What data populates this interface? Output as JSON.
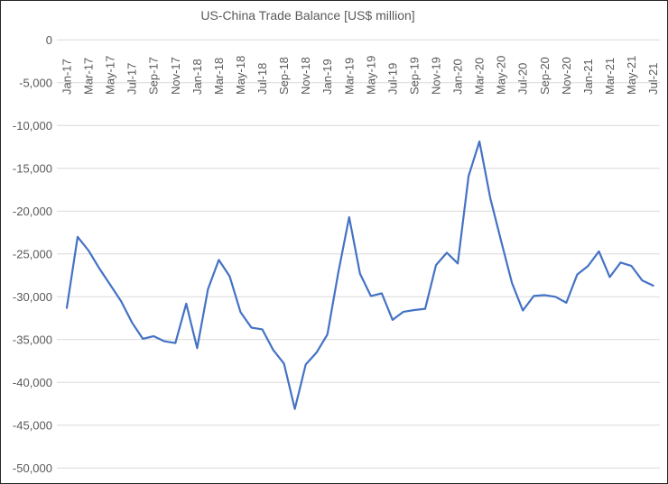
{
  "chart": {
    "title": "US-China Trade Balance [US$ million]"
  },
  "chart_data": {
    "type": "line",
    "title": "US-China Trade Balance [US$ million]",
    "xlabel": "",
    "ylabel": "",
    "legend": "none",
    "grid": true,
    "ylim": [
      -50000,
      0
    ],
    "y_tick_interval": 5000,
    "line_color": "#4472C4",
    "gridline_color": "#D9D9D9",
    "label_color": "#595959",
    "x": [
      "Jan-17",
      "Feb-17",
      "Mar-17",
      "Apr-17",
      "May-17",
      "Jun-17",
      "Jul-17",
      "Aug-17",
      "Sep-17",
      "Oct-17",
      "Nov-17",
      "Dec-17",
      "Jan-18",
      "Feb-18",
      "Mar-18",
      "Apr-18",
      "May-18",
      "Jun-18",
      "Jul-18",
      "Aug-18",
      "Sep-18",
      "Oct-18",
      "Nov-18",
      "Dec-18",
      "Jan-19",
      "Feb-19",
      "Mar-19",
      "Apr-19",
      "May-19",
      "Jun-19",
      "Jul-19",
      "Aug-19",
      "Sep-19",
      "Oct-19",
      "Nov-19",
      "Dec-19",
      "Jan-20",
      "Feb-20",
      "Mar-20",
      "Apr-20",
      "May-20",
      "Jun-20",
      "Jul-20",
      "Aug-20",
      "Sep-20",
      "Oct-20",
      "Nov-20",
      "Dec-20",
      "Jan-21",
      "Feb-21",
      "Mar-21",
      "Apr-21",
      "May-21",
      "Jun-21",
      "Jul-21"
    ],
    "values": [
      -31300,
      -23000,
      -24600,
      -26700,
      -28600,
      -30500,
      -33000,
      -34900,
      -34600,
      -35200,
      -35400,
      -30800,
      -36000,
      -29100,
      -25700,
      -27600,
      -31800,
      -33600,
      -33800,
      -36200,
      -37800,
      -43100,
      -37900,
      -36500,
      -34400,
      -27200,
      -20700,
      -27300,
      -29900,
      -29600,
      -32700,
      -31750,
      -31550,
      -31400,
      -26300,
      -24850,
      -26100,
      -15900,
      -11850,
      -18500,
      -23500,
      -28400,
      -31600,
      -29900,
      -29800,
      -30000,
      -30700,
      -27400,
      -26400,
      -24700,
      -27700,
      -26000,
      -26400,
      -28100,
      -28700
    ],
    "x_tick_step": 2,
    "x_tick_labels": [
      "Jan-17",
      "Mar-17",
      "May-17",
      "Jul-17",
      "Sep-17",
      "Nov-17",
      "Jan-18",
      "Mar-18",
      "May-18",
      "Jul-18",
      "Sep-18",
      "Nov-18",
      "Jan-19",
      "Mar-19",
      "May-19",
      "Jul-19",
      "Sep-19",
      "Nov-19",
      "Jan-20",
      "Mar-20",
      "May-20",
      "Jul-20",
      "Sep-20",
      "Nov-20",
      "Jan-21",
      "Mar-21",
      "May-21",
      "Jul-21"
    ],
    "y_ticks": [
      {
        "value": 0,
        "label": "0"
      },
      {
        "value": -5000,
        "label": "-5,000"
      },
      {
        "value": -10000,
        "label": "-10,000"
      },
      {
        "value": -15000,
        "label": "-15,000"
      },
      {
        "value": -20000,
        "label": "-20,000"
      },
      {
        "value": -25000,
        "label": "-25,000"
      },
      {
        "value": -30000,
        "label": "-30,000"
      },
      {
        "value": -35000,
        "label": "-35,000"
      },
      {
        "value": -40000,
        "label": "-40,000"
      },
      {
        "value": -45000,
        "label": "-45,000"
      },
      {
        "value": -50000,
        "label": "-50,000"
      }
    ]
  }
}
